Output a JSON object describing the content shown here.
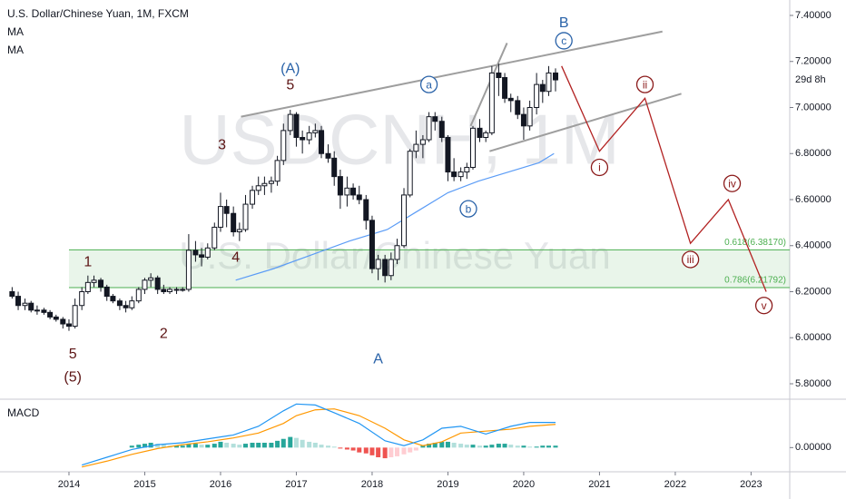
{
  "chart_data": {
    "type": "candlestick",
    "title": "U.S. Dollar/Chinese Yuan, 1M, FXCM",
    "indicators": [
      "MA",
      "MA"
    ],
    "watermark": [
      "USDCNH, 1M",
      "U.S. Dollar/Chinese Yuan"
    ],
    "countdown": "29d 8h",
    "xlim": [
      2013.09,
      2023.51
    ],
    "ylim": [
      5.733,
      7.467
    ],
    "xticks": [
      2014,
      2015,
      2016,
      2017,
      2018,
      2019,
      2020,
      2021,
      2022,
      2023
    ],
    "yticks": [
      {
        "value": 5.8,
        "label": "5.80000"
      },
      {
        "value": 6,
        "label": "6.00000"
      },
      {
        "value": 6.2,
        "label": "6.20000"
      },
      {
        "value": 6.4,
        "label": "6.40000"
      },
      {
        "value": 6.6,
        "label": "6.60000"
      },
      {
        "value": 6.8,
        "label": "6.80000"
      },
      {
        "value": 7,
        "label": "7.00000"
      },
      {
        "value": 7.2,
        "label": "7.20000"
      },
      {
        "value": 7.4,
        "label": "7.40000"
      }
    ],
    "up_color": "#ffffff",
    "down_color": "#131722",
    "x": [
      2013.25,
      2013.33,
      2013.42,
      2013.5,
      2013.58,
      2013.67,
      2013.75,
      2013.83,
      2013.92,
      2014,
      2014.08,
      2014.17,
      2014.25,
      2014.33,
      2014.42,
      2014.5,
      2014.58,
      2014.67,
      2014.75,
      2014.83,
      2014.92,
      2015,
      2015.08,
      2015.17,
      2015.25,
      2015.33,
      2015.42,
      2015.5,
      2015.58,
      2015.67,
      2015.75,
      2015.83,
      2015.92,
      2016,
      2016.08,
      2016.17,
      2016.25,
      2016.33,
      2016.42,
      2016.5,
      2016.58,
      2016.67,
      2016.75,
      2016.83,
      2016.92,
      2017,
      2017.08,
      2017.17,
      2017.25,
      2017.33,
      2017.42,
      2017.5,
      2017.58,
      2017.67,
      2017.75,
      2017.83,
      2017.92,
      2018,
      2018.08,
      2018.17,
      2018.25,
      2018.33,
      2018.42,
      2018.5,
      2018.58,
      2018.67,
      2018.75,
      2018.83,
      2018.92,
      2019,
      2019.08,
      2019.17,
      2019.25,
      2019.33,
      2019.42,
      2019.5,
      2019.58,
      2019.67,
      2019.75,
      2019.83,
      2019.92,
      2020,
      2020.08,
      2020.17,
      2020.25,
      2020.33,
      2020.42
    ],
    "open": [
      6.2,
      6.18,
      6.14,
      6.15,
      6.12,
      6.12,
      6.11,
      6.09,
      6.08,
      6.06,
      6.05,
      6.14,
      6.2,
      6.24,
      6.25,
      6.22,
      6.18,
      6.16,
      6.14,
      6.13,
      6.16,
      6.21,
      6.25,
      6.26,
      6.21,
      6.2,
      6.21,
      6.21,
      6.21,
      6.38,
      6.36,
      6.35,
      6.39,
      6.48,
      6.57,
      6.54,
      6.46,
      6.47,
      6.58,
      6.64,
      6.66,
      6.67,
      6.68,
      6.77,
      6.9,
      6.97,
      6.87,
      6.86,
      6.89,
      6.9,
      6.8,
      6.78,
      6.7,
      6.62,
      6.65,
      6.62,
      6.6,
      6.51,
      6.3,
      6.34,
      6.27,
      6.34,
      6.4,
      6.62,
      6.81,
      6.84,
      6.86,
      6.96,
      6.94,
      6.87,
      6.72,
      6.7,
      6.72,
      6.74,
      6.91,
      6.87,
      6.89,
      7.15,
      7.13,
      7.04,
      7.03,
      6.97,
      6.92,
      7.0,
      7.1,
      7.07,
      7.15
    ],
    "high": [
      6.22,
      6.2,
      6.17,
      6.16,
      6.14,
      6.13,
      6.12,
      6.1,
      6.09,
      6.08,
      6.17,
      6.22,
      6.27,
      6.27,
      6.26,
      6.23,
      6.19,
      6.17,
      6.16,
      6.18,
      6.22,
      6.26,
      6.28,
      6.27,
      6.23,
      6.22,
      6.22,
      6.22,
      6.45,
      6.42,
      6.39,
      6.41,
      6.5,
      6.63,
      6.6,
      6.57,
      6.5,
      6.62,
      6.66,
      6.7,
      6.7,
      6.7,
      6.79,
      6.93,
      6.99,
      6.98,
      6.9,
      6.92,
      6.93,
      6.92,
      6.84,
      6.81,
      6.73,
      6.7,
      6.67,
      6.66,
      6.62,
      6.53,
      6.36,
      6.36,
      6.37,
      6.43,
      6.65,
      6.82,
      6.9,
      6.88,
      6.98,
      6.98,
      6.96,
      6.88,
      6.78,
      6.74,
      6.76,
      6.92,
      6.95,
      6.9,
      7.18,
      7.19,
      7.15,
      7.06,
      7.05,
      7.0,
      7.03,
      7.15,
      7.12,
      7.18,
      7.17
    ],
    "low": [
      6.17,
      6.12,
      6.12,
      6.11,
      6.1,
      6.1,
      6.08,
      6.07,
      6.04,
      6.03,
      6.04,
      6.12,
      6.19,
      6.22,
      6.2,
      6.16,
      6.15,
      6.12,
      6.11,
      6.12,
      6.15,
      6.19,
      6.22,
      6.19,
      6.19,
      6.19,
      6.19,
      6.2,
      6.2,
      6.33,
      6.31,
      6.34,
      6.38,
      6.46,
      6.48,
      6.44,
      6.42,
      6.46,
      6.56,
      6.62,
      6.62,
      6.63,
      6.66,
      6.75,
      6.88,
      6.83,
      6.8,
      6.84,
      6.87,
      6.78,
      6.76,
      6.66,
      6.56,
      6.57,
      6.6,
      6.58,
      6.47,
      6.28,
      6.25,
      6.24,
      6.25,
      6.32,
      6.39,
      6.61,
      6.78,
      6.78,
      6.85,
      6.9,
      6.85,
      6.68,
      6.68,
      6.68,
      6.69,
      6.73,
      6.85,
      6.85,
      6.88,
      7.05,
      7.02,
      6.98,
      6.95,
      6.86,
      6.9,
      6.97,
      7.02,
      7.05,
      7.07
    ],
    "close": [
      6.18,
      6.14,
      6.15,
      6.12,
      6.12,
      6.11,
      6.09,
      6.08,
      6.06,
      6.05,
      6.14,
      6.2,
      6.24,
      6.25,
      6.22,
      6.18,
      6.16,
      6.14,
      6.13,
      6.16,
      6.21,
      6.25,
      6.26,
      6.21,
      6.2,
      6.21,
      6.21,
      6.21,
      6.38,
      6.36,
      6.35,
      6.39,
      6.48,
      6.57,
      6.54,
      6.46,
      6.47,
      6.58,
      6.64,
      6.66,
      6.67,
      6.68,
      6.77,
      6.9,
      6.97,
      6.87,
      6.86,
      6.89,
      6.9,
      6.8,
      6.78,
      6.7,
      6.62,
      6.65,
      6.62,
      6.6,
      6.51,
      6.3,
      6.34,
      6.27,
      6.34,
      6.4,
      6.62,
      6.81,
      6.84,
      6.86,
      6.96,
      6.94,
      6.87,
      6.72,
      6.7,
      6.72,
      6.74,
      6.91,
      6.87,
      6.89,
      7.15,
      7.13,
      7.04,
      7.03,
      6.97,
      6.92,
      7.0,
      7.1,
      7.07,
      7.15,
      7.12
    ],
    "ma": {
      "color": "#5b9cf6",
      "x": [
        2016.2,
        2016.7,
        2017.2,
        2017.7,
        2018.2,
        2018.6,
        2019.0,
        2019.4,
        2019.8,
        2020.2,
        2020.4
      ],
      "values": [
        6.25,
        6.3,
        6.36,
        6.42,
        6.47,
        6.55,
        6.63,
        6.68,
        6.72,
        6.76,
        6.8
      ]
    },
    "trendlines": [
      {
        "color": "#9e9e9e",
        "x": [
          2016.27,
          2021.83
        ],
        "y": [
          6.96,
          7.33
        ]
      },
      {
        "color": "#9e9e9e",
        "x": [
          2019.55,
          2022.08
        ],
        "y": [
          6.81,
          7.06
        ]
      },
      {
        "color": "#9e9e9e",
        "x": [
          2019.3,
          2019.78
        ],
        "y": [
          6.92,
          7.28
        ]
      }
    ],
    "projection": {
      "color": "#b22222",
      "x": [
        2020.5,
        2021.0,
        2021.6,
        2022.2,
        2022.7,
        2023.2
      ],
      "y": [
        7.18,
        6.81,
        7.04,
        6.41,
        6.6,
        6.2
      ]
    },
    "fib_color": "#4caf50",
    "fib_start": 2014,
    "fib_levels": [
      {
        "value": 6.3817,
        "label": "0.618(6.38170)"
      },
      {
        "value": 6.21792,
        "label": "0.786(6.21792)"
      }
    ],
    "annotations": [
      {
        "text": "5",
        "x": 2014.05,
        "y": 5.93,
        "color": "#5c1414",
        "circled": false
      },
      {
        "text": "(5)",
        "x": 2014.05,
        "y": 5.83,
        "color": "#5c1414",
        "circled": false
      },
      {
        "text": "1",
        "x": 2014.25,
        "y": 6.33,
        "color": "#5c1414",
        "circled": false
      },
      {
        "text": "2",
        "x": 2015.25,
        "y": 6.02,
        "color": "#5c1414",
        "circled": false
      },
      {
        "text": "3",
        "x": 2016.02,
        "y": 6.84,
        "color": "#5c1414",
        "circled": false
      },
      {
        "text": "4",
        "x": 2016.2,
        "y": 6.35,
        "color": "#5c1414",
        "circled": false
      },
      {
        "text": "(A)",
        "x": 2016.92,
        "y": 7.17,
        "color": "#2962a8",
        "circled": false
      },
      {
        "text": "5",
        "x": 2016.92,
        "y": 7.1,
        "color": "#5c1414",
        "circled": false
      },
      {
        "text": "A",
        "x": 2018.08,
        "y": 5.91,
        "color": "#2962a8",
        "circled": false
      },
      {
        "text": "a",
        "x": 2018.75,
        "y": 7.1,
        "color": "#2962a8",
        "circled": true
      },
      {
        "text": "b",
        "x": 2019.27,
        "y": 6.56,
        "color": "#2962a8",
        "circled": true
      },
      {
        "text": "B",
        "x": 2020.53,
        "y": 7.37,
        "color": "#2962a8",
        "circled": false
      },
      {
        "text": "c",
        "x": 2020.53,
        "y": 7.29,
        "color": "#2962a8",
        "circled": true
      },
      {
        "text": "i",
        "x": 2021.0,
        "y": 6.74,
        "color": "#8b1a1a",
        "circled": true
      },
      {
        "text": "ii",
        "x": 2021.6,
        "y": 7.1,
        "color": "#8b1a1a",
        "circled": true
      },
      {
        "text": "iii",
        "x": 2022.2,
        "y": 6.34,
        "color": "#8b1a1a",
        "circled": true
      },
      {
        "text": "iv",
        "x": 2022.75,
        "y": 6.67,
        "color": "#8b1a1a",
        "circled": true
      },
      {
        "text": "v",
        "x": 2023.17,
        "y": 6.14,
        "color": "#8b1a1a",
        "circled": true
      }
    ],
    "macd": {
      "title": "MACD",
      "ylim": [
        -0.25,
        0.5
      ],
      "yticks": [
        {
          "value": 0,
          "label": "0.00000"
        }
      ],
      "x": [
        2014.17,
        2014.5,
        2014.83,
        2015.17,
        2015.5,
        2015.83,
        2016.17,
        2016.5,
        2016.83,
        2017.0,
        2017.25,
        2017.5,
        2017.83,
        2018.17,
        2018.42,
        2018.67,
        2018.92,
        2019.17,
        2019.5,
        2019.83,
        2020.08,
        2020.42
      ],
      "macd": {
        "color": "#2196f3",
        "values": [
          -0.18,
          -0.1,
          -0.02,
          0.03,
          0.05,
          0.09,
          0.13,
          0.22,
          0.38,
          0.45,
          0.44,
          0.36,
          0.25,
          0.07,
          0.02,
          0.08,
          0.2,
          0.22,
          0.14,
          0.22,
          0.26,
          0.26
        ]
      },
      "signal": {
        "color": "#ff9800",
        "values": [
          -0.2,
          -0.14,
          -0.07,
          -0.01,
          0.03,
          0.06,
          0.1,
          0.15,
          0.25,
          0.33,
          0.39,
          0.4,
          0.33,
          0.2,
          0.08,
          0.02,
          0.06,
          0.15,
          0.17,
          0.19,
          0.22,
          0.24
        ]
      },
      "histogram": {
        "colors": [
          "#26a69a",
          "#b2dfdb",
          "#ef5350",
          "#ffcdd2"
        ],
        "values": [
          null,
          null,
          null,
          null,
          null,
          null,
          null,
          null,
          null,
          null,
          null,
          null,
          null,
          null,
          null,
          null,
          null,
          null,
          null,
          0.02,
          0.03,
          0.04,
          0.05,
          0.04,
          0.03,
          0.02,
          0.02,
          0.02,
          0.04,
          0.04,
          0.03,
          0.03,
          0.04,
          0.06,
          0.05,
          0.04,
          0.03,
          0.04,
          0.05,
          0.05,
          0.05,
          0.05,
          0.07,
          0.09,
          0.11,
          0.1,
          0.08,
          0.06,
          0.05,
          0.03,
          0.02,
          0.01,
          -0.01,
          -0.02,
          -0.03,
          -0.05,
          -0.06,
          -0.08,
          -0.1,
          -0.11,
          -0.1,
          -0.09,
          -0.07,
          -0.05,
          -0.03,
          0.02,
          0.04,
          0.05,
          0.06,
          0.06,
          0.05,
          0.04,
          0.03,
          0.03,
          0.02,
          0.02,
          0.03,
          0.04,
          0.04,
          0.03,
          0.02,
          0.02,
          0.01,
          0.01,
          0.02,
          0.02,
          0.02
        ]
      }
    }
  }
}
